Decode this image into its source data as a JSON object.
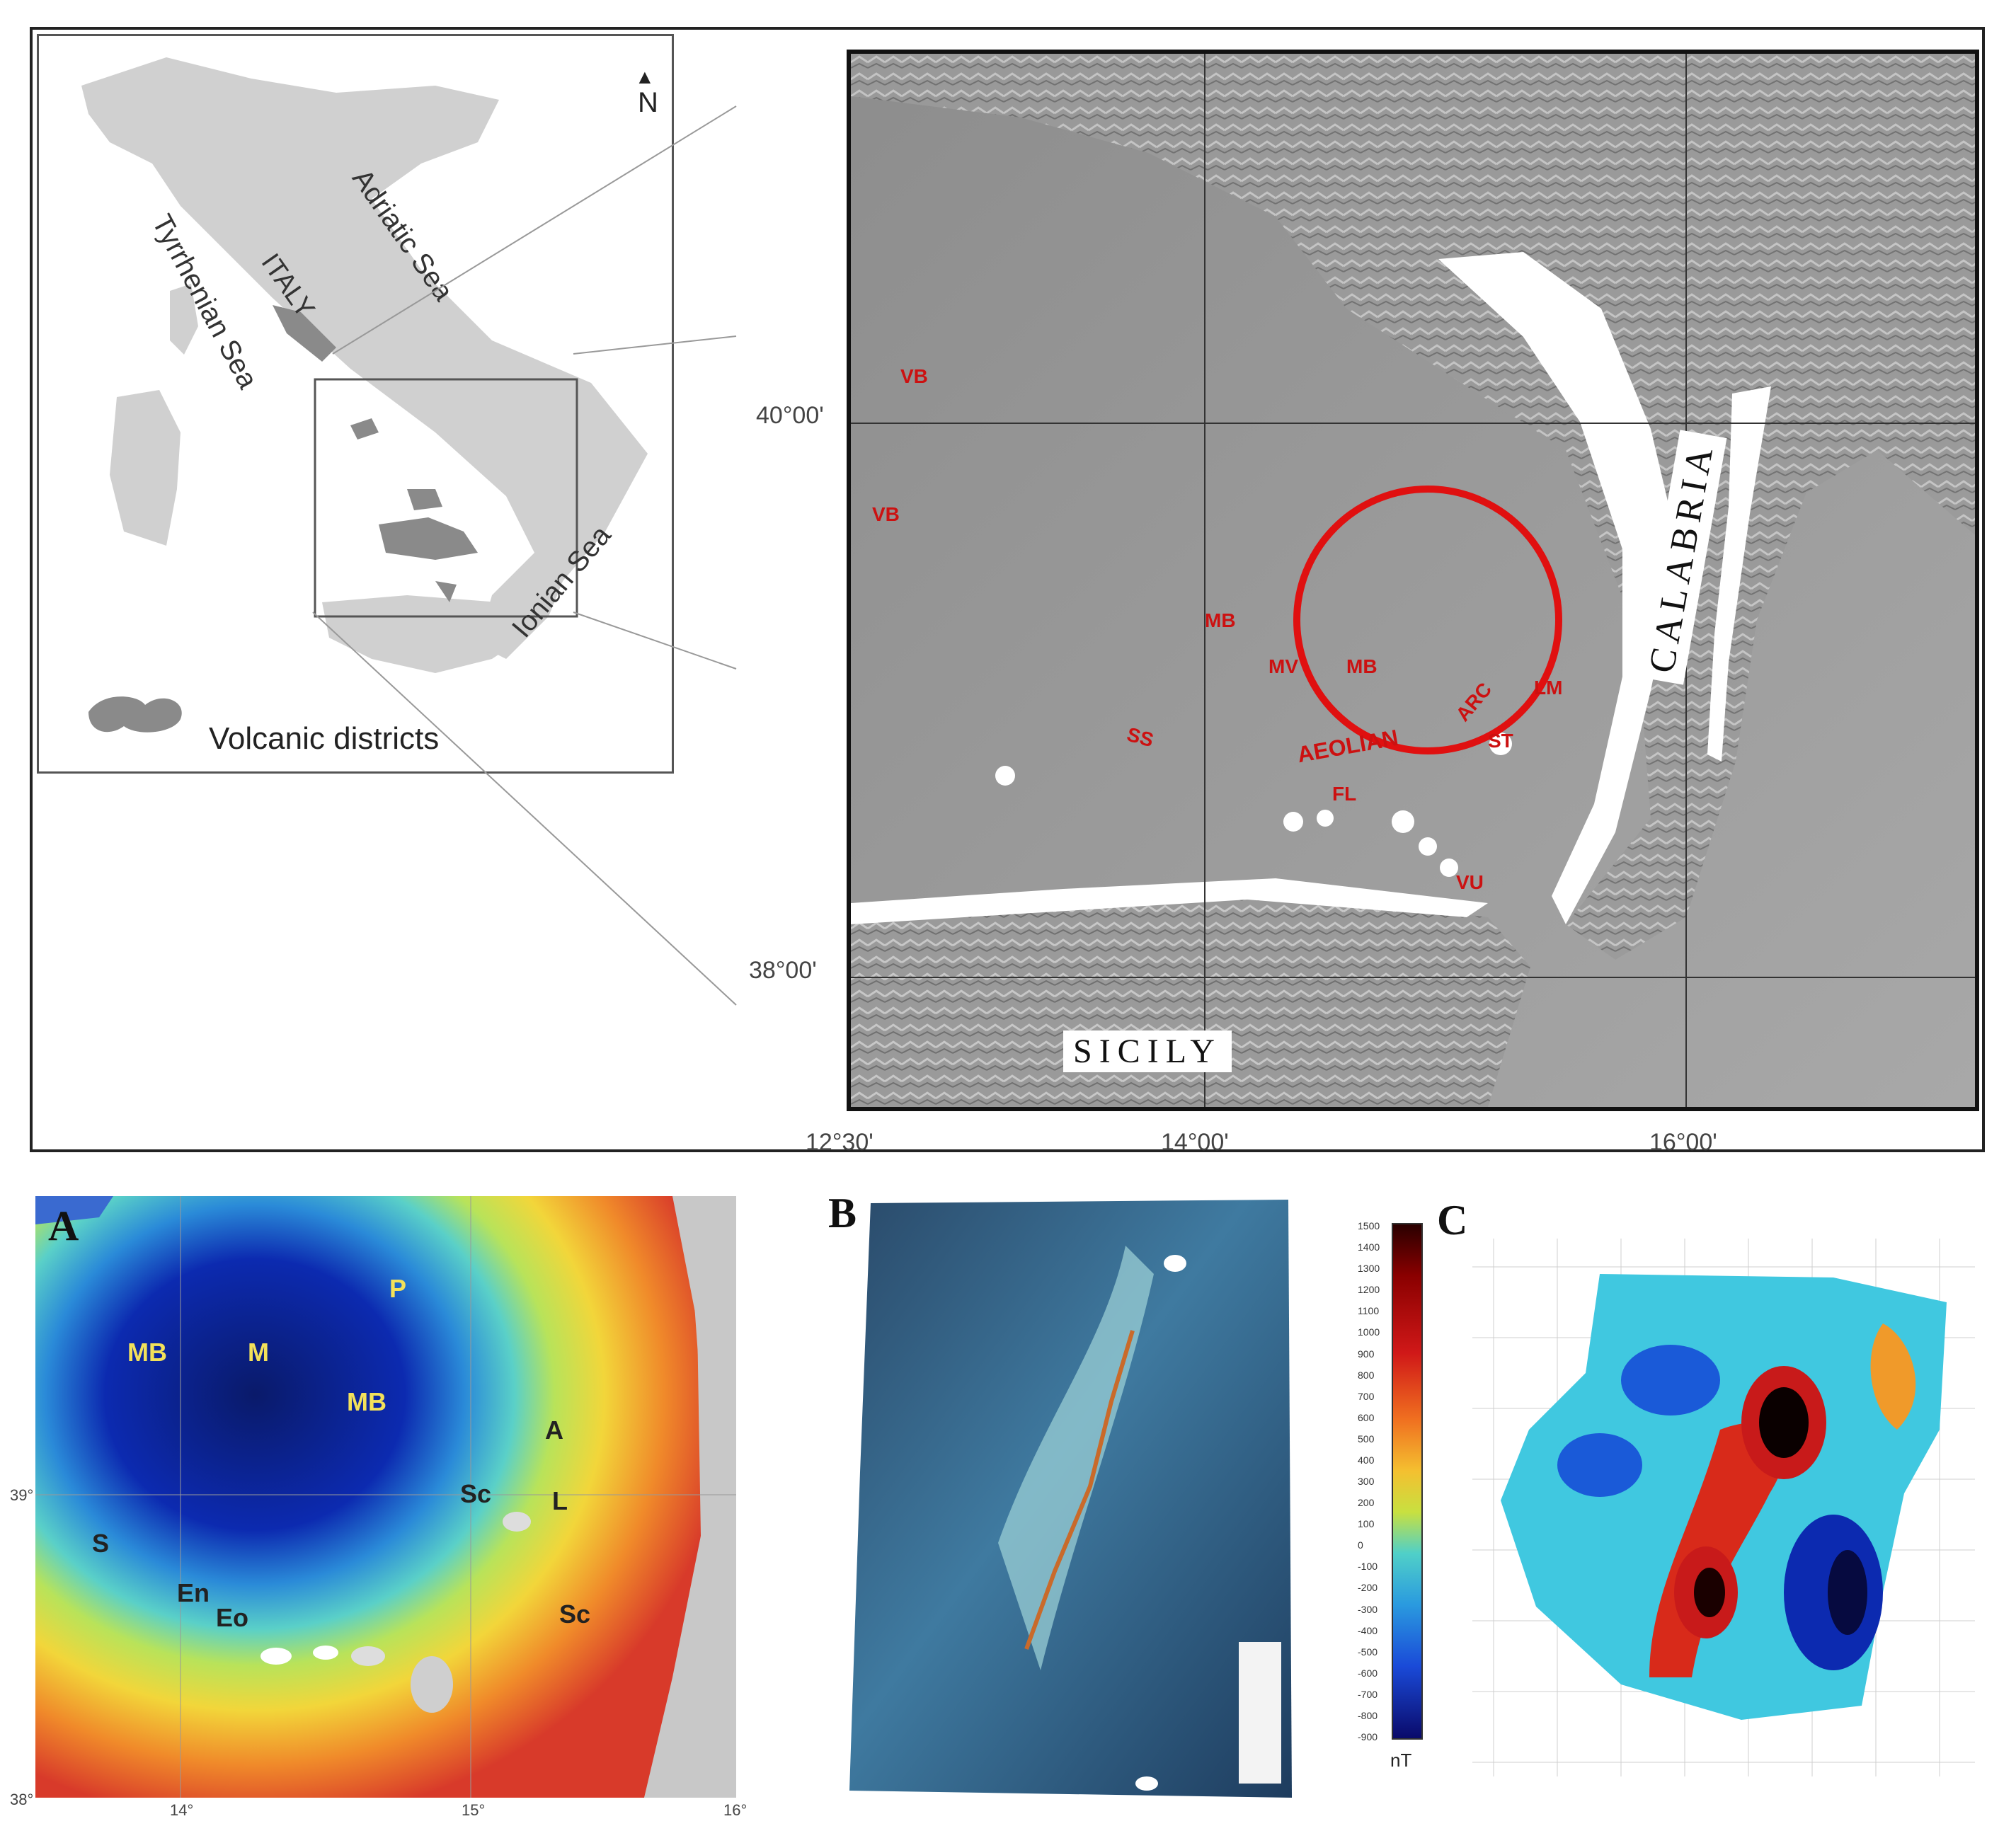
{
  "inset_map": {
    "labels": {
      "north": "N",
      "italy": "ITALY",
      "adriatic": "Adriatic Sea",
      "tyrrhenian": "Tyrrhenian Sea",
      "ionian": "Ionian Sea",
      "legend": "Volcanic districts"
    }
  },
  "main_map": {
    "lat_labels": [
      "40°00'",
      "38°00'"
    ],
    "lon_labels": [
      "12°30'",
      "14°00'",
      "16°00'"
    ],
    "region_labels": {
      "calabria": "CALABRIA",
      "sicily": "SICILY"
    },
    "feature_labels": [
      "VB",
      "VB",
      "MB",
      "MV",
      "MB",
      "AEOLIAN",
      "ARC",
      "ST",
      "LM",
      "FL",
      "VU",
      "SS"
    ]
  },
  "panel_a": {
    "letter": "A",
    "labels": [
      "P",
      "MB",
      "M",
      "MB",
      "A",
      "Sc",
      "L",
      "S",
      "En",
      "Eo",
      "Sc"
    ],
    "lon_ticks": [
      "14°",
      "15°",
      "16°"
    ],
    "lat_ticks": [
      "39°",
      "38°"
    ]
  },
  "panel_b": {
    "letter": "B"
  },
  "panel_c": {
    "letter": "C"
  },
  "colorbar": {
    "unit": "nT",
    "ticks": [
      "1500",
      "1400",
      "1300",
      "1200",
      "1100",
      "1000",
      "900",
      "800",
      "700",
      "600",
      "500",
      "400",
      "300",
      "200",
      "100",
      "0",
      "-100",
      "-200",
      "-300",
      "-400",
      "-500",
      "-600",
      "-700",
      "-800",
      "-900"
    ]
  }
}
